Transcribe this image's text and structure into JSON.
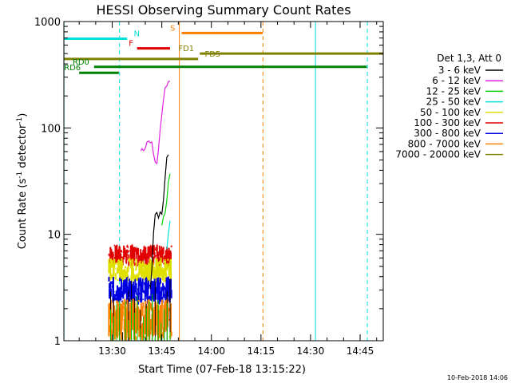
{
  "chart_data": {
    "type": "line",
    "title": "HESSI Observing Summary Count Rates",
    "xlabel": "Start Time (07-Feb-18 13:15:22)",
    "ylabel": "Count Rate (s⁻¹ detector⁻¹)",
    "ylabel_base": "Count Rate (s",
    "ylabel_mid": " detector",
    "ylabel_end": ")",
    "ylabel_sup": "-1",
    "y_scale": "log",
    "ylim": [
      1,
      1000
    ],
    "xlim": [
      "13:15:22",
      "14:52:00"
    ],
    "x_tick_labels": [
      "13:30",
      "13:45",
      "14:00",
      "14:15",
      "14:30",
      "14:45"
    ],
    "x_ticks_min": [
      30,
      45,
      60,
      75,
      90,
      105
    ],
    "y_tick_labels": [
      "1",
      "10",
      "100",
      "1000"
    ],
    "y_ticks": [
      1,
      10,
      100,
      1000
    ],
    "legend_header": "Det 1,3, Att 0",
    "legend_placement": "right",
    "timestamp": "10-Feb-2018 14:06",
    "series": [
      {
        "name": "3 - 6 keV",
        "color": "#000000"
      },
      {
        "name": "6 - 12 keV",
        "color": "#e020e0"
      },
      {
        "name": "12 - 25 keV",
        "color": "#00d000"
      },
      {
        "name": "25 - 50 keV",
        "color": "#00e0e0"
      },
      {
        "name": "50 - 100 keV",
        "color": "#e0e000"
      },
      {
        "name": "100 - 300 keV",
        "color": "#e00000"
      },
      {
        "name": "300 - 800 keV",
        "color": "#0000e0"
      },
      {
        "name": "800 - 7000 keV",
        "color": "#ff8000"
      },
      {
        "name": "7000 - 20000 keV",
        "color": "#808000"
      }
    ],
    "line_data": {
      "s3_6": {
        "x": [
          41.5,
          42,
          42.5,
          43,
          43.5,
          44,
          44.5,
          45,
          45.5,
          46,
          46.5,
          47
        ],
        "y": [
          3,
          5,
          10,
          15,
          17,
          14,
          17,
          16,
          22,
          35,
          50,
          55
        ]
      },
      "s6_12": {
        "x": [
          38.6,
          39,
          39.5,
          40,
          40.5,
          41,
          41.5,
          42,
          42.5,
          43,
          43.5,
          44,
          44.5,
          45,
          45.5,
          46,
          46.5,
          47,
          47.5
        ],
        "y": [
          60,
          62,
          60,
          64,
          70,
          75,
          72,
          70,
          55,
          45,
          48,
          62,
          100,
          140,
          180,
          230,
          260,
          280,
          290
        ]
      },
      "s12_25": {
        "x": [
          45,
          45.5,
          46,
          46.5,
          47,
          47.5
        ],
        "y": [
          12,
          14,
          16,
          22,
          30,
          38
        ]
      },
      "s25_50": {
        "x": [
          46.5,
          47,
          47.5
        ],
        "y": [
          7,
          10,
          14
        ]
      }
    },
    "noise_bands": [
      {
        "color": "#e00000",
        "x0": 29,
        "x1": 48,
        "ylo": 5,
        "yhi": 8
      },
      {
        "color": "#e0e000",
        "x0": 29,
        "x1": 48,
        "ylo": 3.5,
        "yhi": 6
      },
      {
        "color": "#0000e0",
        "x0": 29,
        "x1": 48,
        "ylo": 2.2,
        "yhi": 4
      },
      {
        "color": "#ff8000",
        "x0": 29,
        "x1": 48,
        "ylo": 1,
        "yhi": 2.5
      }
    ],
    "flag_lines": [
      {
        "label": "N",
        "color": "#00e0e0",
        "x0": 15.4,
        "x1": 34.5,
        "level": 690,
        "label_x": 36.5
      },
      {
        "label": "F",
        "color": "#e00000",
        "x0": 37.5,
        "x1": 47.5,
        "level": 560,
        "label_x": 35
      },
      {
        "label": "S",
        "color": "#ff8000",
        "x0": 51,
        "x1": 75.5,
        "level": 780,
        "label_x": 47.5
      },
      {
        "label": "FD1",
        "color": "#808000",
        "x0": 56.5,
        "x1": 112,
        "level": 500,
        "label_x": 50
      },
      {
        "label": "FD5",
        "color": "#808000",
        "x0": 15.4,
        "x1": 56,
        "level": 445,
        "label_x": 58
      },
      {
        "label": "RD0",
        "color": "#008000",
        "x0": 24.5,
        "x1": 107,
        "level": 375,
        "label_x": 18
      },
      {
        "label": "RD6",
        "color": "#008000",
        "x0": 20,
        "x1": 32,
        "level": 330,
        "label_x": 15.4
      }
    ],
    "vertical_lines": [
      {
        "x": 15.4,
        "color": "#00e0e0",
        "style": "solid"
      },
      {
        "x": 32.2,
        "color": "#00e0e0",
        "style": "dashed"
      },
      {
        "x": 50.3,
        "color": "#ff8000",
        "style": "solid"
      },
      {
        "x": 75.6,
        "color": "#ff8000",
        "style": "dashed"
      },
      {
        "x": 91.5,
        "color": "#00e0e0",
        "style": "solid"
      },
      {
        "x": 107.2,
        "color": "#00e0e0",
        "style": "dashed"
      }
    ]
  }
}
